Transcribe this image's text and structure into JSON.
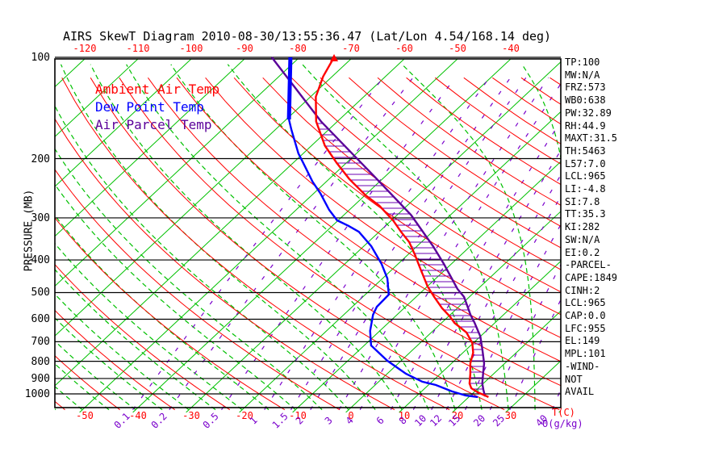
{
  "title": "AIRS SkewT Diagram 2010-08-30/13:55:36.47 (Lat/Lon 4.54/168.14 deg)",
  "legend": {
    "ambient": "Ambient Air Temp",
    "dew": "Dew Point Temp",
    "parcel": "Air Parcel Temp"
  },
  "colors": {
    "isotherm_green": "#00C000",
    "moist_green": "#00C000",
    "dry_adiabat_red": "#FF0000",
    "mixing_purple": "#7A00CC",
    "ambient_red": "#FF0000",
    "dew_blue": "#0000FF",
    "parcel_purple": "#5A0099",
    "hatch_purple": "#6B00B3",
    "grid_black": "#000000",
    "label_red": "#FF0000",
    "text_black": "#000000"
  },
  "axes": {
    "pressure_label": "PRESSURE (MB)",
    "pressure_ticks": [
      100,
      200,
      300,
      400,
      500,
      600,
      700,
      800,
      900,
      1000
    ],
    "top_temp_ticks": [
      -120,
      -110,
      -100,
      -90,
      -80,
      -70,
      -60,
      -50,
      -40
    ],
    "bottom_temp_ticks": [
      -50,
      -40,
      -30,
      -20,
      -10,
      0,
      10,
      20,
      30
    ],
    "temp_unit_label": "T(C)",
    "mixing_unit_label": "Θ(g/kg)",
    "mixing_ratio_labels": [
      "0.1",
      "0.2",
      "0.5",
      "1",
      "1.5",
      "2",
      "3",
      "4",
      "6",
      "8",
      "10",
      "12",
      "15",
      "20",
      "25",
      "40"
    ]
  },
  "stats_panel": {
    "lines": [
      "TP:100",
      "MW:N/A",
      "FRZ:573",
      "WB0:638",
      "PW:32.89",
      "RH:44.9",
      "MAXT:31.5",
      "TH:5463",
      "L57:7.0",
      "LCL:965",
      "LI:-4.8",
      "SI:7.8",
      "TT:35.3",
      "KI:282",
      "SW:N/A",
      "EI:0.2",
      "-PARCEL-",
      "CAPE:1849",
      "CINH:2",
      "LCL:965",
      "CAP:0.0",
      "LFC:955",
      "EL:149",
      "MPL:101",
      "-WIND-",
      "NOT",
      "AVAIL"
    ]
  },
  "chart_data": {
    "type": "skewt",
    "title": "AIRS SkewT Diagram 2010-08-30/13:55:36.47 (Lat/Lon 4.54/168.14 deg)",
    "pressure_axis_mb": {
      "top": 100,
      "bottom": 1100,
      "scale": "log"
    },
    "surface_temp_axis_c": {
      "min": -50,
      "max": 40,
      "step": 10
    },
    "isotherms_c": {
      "start": -130,
      "end": 50,
      "step": 10
    },
    "dry_adiabats_theta_c": {
      "start": -60,
      "end": 190,
      "step": 10
    },
    "moist_adiabats_start_c": {
      "start": -60,
      "end": 45,
      "step": 5
    },
    "mixing_ratio_lines_g_kg": [
      0.1,
      0.2,
      0.5,
      1,
      1.5,
      2,
      3,
      4,
      6,
      8,
      10,
      12,
      15,
      20,
      25,
      40
    ],
    "series": [
      {
        "name": "Ambient Air Temp",
        "points_p_t": [
          [
            100,
            -73.5
          ],
          [
            114,
            -71.7
          ],
          [
            131,
            -69.0
          ],
          [
            155,
            -64.0
          ],
          [
            183,
            -57.5
          ],
          [
            206,
            -51.8
          ],
          [
            230,
            -46.2
          ],
          [
            257,
            -39.9
          ],
          [
            276,
            -35.2
          ],
          [
            305,
            -29.7
          ],
          [
            330,
            -25.9
          ],
          [
            354,
            -22.3
          ],
          [
            385,
            -18.8
          ],
          [
            418,
            -15.5
          ],
          [
            480,
            -9.9
          ],
          [
            515,
            -6.6
          ],
          [
            557,
            -2.8
          ],
          [
            588,
            0.2
          ],
          [
            615,
            2.4
          ],
          [
            657,
            6.6
          ],
          [
            706,
            9.8
          ],
          [
            754,
            11.9
          ],
          [
            811,
            13.5
          ],
          [
            871,
            15.6
          ],
          [
            931,
            17.4
          ],
          [
            962,
            18.7
          ],
          [
            989,
            20.7
          ],
          [
            1022,
            23.7
          ]
        ]
      },
      {
        "name": "Dew Point Temp",
        "points_p_t": [
          [
            100,
            -81.7
          ],
          [
            153,
            -69.5
          ],
          [
            164,
            -67.0
          ],
          [
            193,
            -60.9
          ],
          [
            204,
            -58.5
          ],
          [
            234,
            -52.6
          ],
          [
            254,
            -48.7
          ],
          [
            284,
            -43.8
          ],
          [
            305,
            -40.2
          ],
          [
            317,
            -36.9
          ],
          [
            330,
            -33.8
          ],
          [
            364,
            -28.6
          ],
          [
            411,
            -23.1
          ],
          [
            454,
            -19.1
          ],
          [
            507,
            -15.6
          ],
          [
            551,
            -15.4
          ],
          [
            582,
            -14.5
          ],
          [
            650,
            -11.8
          ],
          [
            718,
            -8.7
          ],
          [
            797,
            -2.6
          ],
          [
            871,
            3.5
          ],
          [
            920,
            8.2
          ],
          [
            941,
            11.4
          ],
          [
            983,
            15.7
          ],
          [
            1011,
            19.1
          ],
          [
            1022,
            21.7
          ]
        ]
      },
      {
        "name": "Air Parcel Temp",
        "points_p_t": [
          [
            100,
            -85.2
          ],
          [
            155,
            -63.1
          ],
          [
            228,
            -41.5
          ],
          [
            294,
            -27.4
          ],
          [
            364,
            -17.0
          ],
          [
            411,
            -11.4
          ],
          [
            488,
            -3.8
          ],
          [
            515,
            -1.0
          ],
          [
            582,
            3.8
          ],
          [
            615,
            6.2
          ],
          [
            675,
            10.0
          ],
          [
            738,
            13.0
          ],
          [
            811,
            16.1
          ],
          [
            871,
            18.0
          ],
          [
            931,
            19.8
          ],
          [
            973,
            21.3
          ],
          [
            1017,
            22.9
          ]
        ]
      }
    ],
    "cape_hatch": {
      "between": [
        "Ambient Air Temp",
        "Air Parcel Temp"
      ],
      "p_top_mb": 151,
      "p_bottom_mb": 968
    },
    "indices": {
      "CAPE": 1849,
      "CINH": 2,
      "LCL": 965,
      "LFC": 955,
      "EL": 149,
      "MPL": 101,
      "LI": -4.8,
      "KI": 282,
      "TT": 35.3
    }
  }
}
